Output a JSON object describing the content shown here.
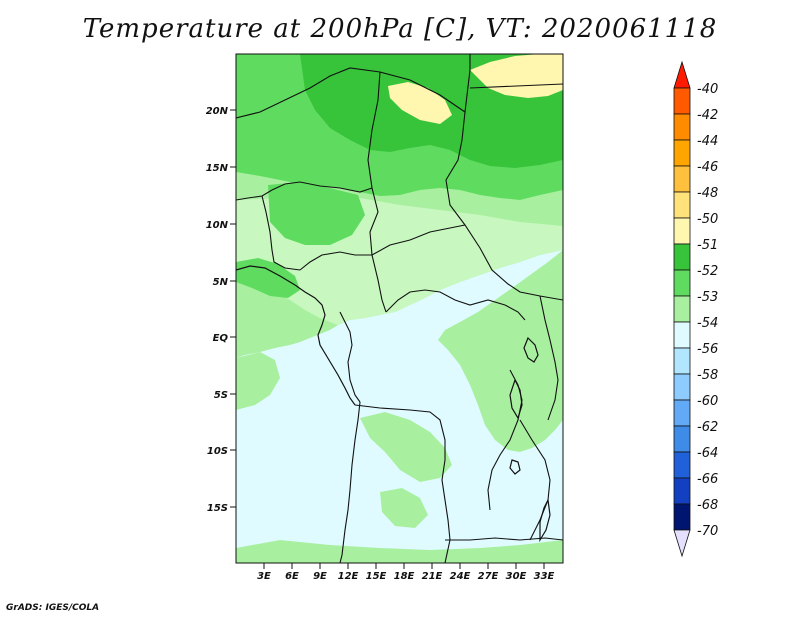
{
  "title": "Temperature at 200hPa [C], VT: 2020061118",
  "credit": "GrADS: IGES/COLA",
  "map": {
    "region": "Central Africa",
    "x_ticks": [
      "3E",
      "6E",
      "9E",
      "12E",
      "15E",
      "18E",
      "21E",
      "24E",
      "27E",
      "30E",
      "33E"
    ],
    "y_ticks": [
      "20N",
      "15N",
      "10N",
      "5N",
      "EQ",
      "5S",
      "10S",
      "15S"
    ]
  },
  "colorbar": {
    "labels": [
      "-40",
      "-42",
      "-44",
      "-46",
      "-48",
      "-50",
      "-51",
      "-52",
      "-53",
      "-54",
      "-56",
      "-58",
      "-60",
      "-62",
      "-64",
      "-66",
      "-68",
      "-70"
    ],
    "colors": [
      "#ff1a00",
      "#ff5a00",
      "#ff8c00",
      "#ffa500",
      "#ffc13d",
      "#ffe27a",
      "#fff6b0",
      "#38c43a",
      "#5fdc5f",
      "#a8f0a0",
      "#e0fbff",
      "#b2e6ff",
      "#8ecbff",
      "#62aaf5",
      "#3f8be8",
      "#2060d8",
      "#1340c0",
      "#001570",
      "#e6e0ff"
    ]
  },
  "fill_colors": {
    "very_light_green": "#c8f8c0",
    "light_green": "#a8f0a0",
    "medium_green": "#5fdc5f",
    "dark_green": "#38c43a",
    "pale_yellow": "#fff6b0",
    "pale_blue": "#e0fbff"
  }
}
